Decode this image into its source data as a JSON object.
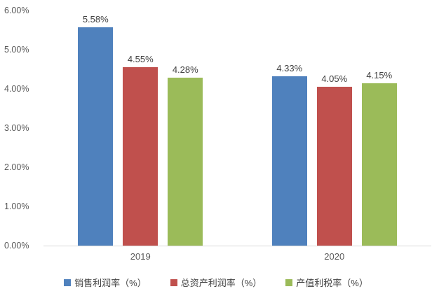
{
  "chart_data": {
    "type": "bar",
    "title": "",
    "xlabel": "",
    "ylabel": "",
    "grid": false,
    "legend_position": "bottom",
    "categories": [
      "2019",
      "2020"
    ],
    "series": [
      {
        "name": "销售利润率（%）",
        "color": "#4f81bd",
        "values": [
          5.58,
          4.33
        ],
        "value_labels": [
          "5.58%",
          "4.33%"
        ]
      },
      {
        "name": "总资产利润率（%）",
        "color": "#c0504d",
        "values": [
          4.55,
          4.05
        ],
        "value_labels": [
          "4.55%",
          "4.05%"
        ]
      },
      {
        "name": "产值利税率（%）",
        "color": "#9bbb59",
        "values": [
          4.28,
          4.15
        ],
        "value_labels": [
          "4.28%",
          "4.15%"
        ]
      }
    ],
    "y_axis": {
      "min": 0,
      "max": 6,
      "step": 1,
      "tick_labels": [
        "0.00%",
        "1.00%",
        "2.00%",
        "3.00%",
        "4.00%",
        "5.00%",
        "6.00%"
      ]
    }
  },
  "colors": {
    "background": "#ffffff",
    "axis_line": "#d9d9d9",
    "tick_label": "#595959",
    "category_label": "#595959",
    "value_label": "#404040",
    "legend_label": "#404040",
    "series_blue": "#4f81bd",
    "series_red": "#c0504d",
    "series_green": "#9bbb59"
  }
}
